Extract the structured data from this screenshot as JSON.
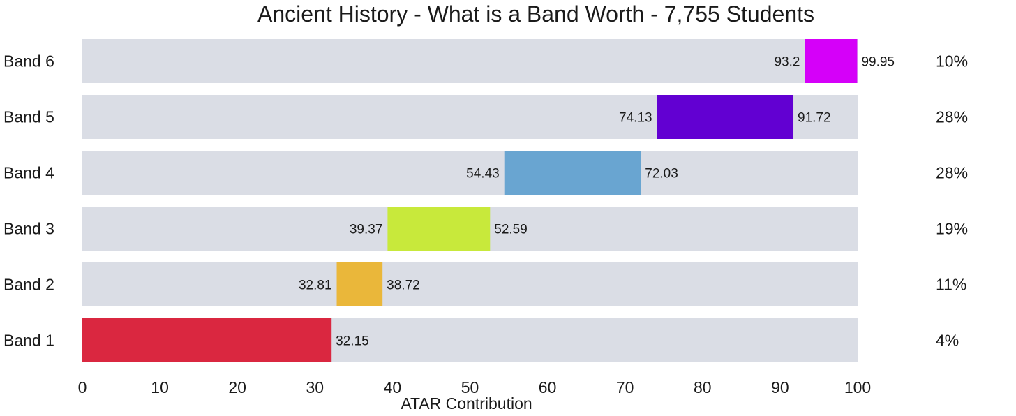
{
  "chart_data": {
    "type": "bar",
    "title": "Ancient History - What is a Band Worth - 7,755 Students",
    "xlabel": "ATAR Contribution",
    "ylabel": "",
    "xlim": [
      0,
      100
    ],
    "xticks": [
      "0",
      "10",
      "20",
      "30",
      "40",
      "50",
      "60",
      "70",
      "80",
      "90",
      "100"
    ],
    "grid": false,
    "background_bar_color": "#dadde5",
    "bands": [
      {
        "label": "Band 6",
        "start": 93.2,
        "end": 99.95,
        "start_label": "93.2",
        "end_label": "99.95",
        "percent": "10%",
        "color": "#d500f9"
      },
      {
        "label": "Band 5",
        "start": 74.13,
        "end": 91.72,
        "start_label": "74.13",
        "end_label": "91.72",
        "percent": "28%",
        "color": "#6200d2"
      },
      {
        "label": "Band 4",
        "start": 54.43,
        "end": 72.03,
        "start_label": "54.43",
        "end_label": "72.03",
        "percent": "28%",
        "color": "#69a5d1"
      },
      {
        "label": "Band 3",
        "start": 39.37,
        "end": 52.59,
        "start_label": "39.37",
        "end_label": "52.59",
        "percent": "19%",
        "color": "#c8e93b"
      },
      {
        "label": "Band 2",
        "start": 32.81,
        "end": 38.72,
        "start_label": "32.81",
        "end_label": "38.72",
        "percent": "11%",
        "color": "#eab73a"
      },
      {
        "label": "Band 1",
        "start": 0,
        "end": 32.15,
        "start_label": "",
        "end_label": "32.15",
        "percent": "4%",
        "color": "#da2740"
      }
    ]
  }
}
